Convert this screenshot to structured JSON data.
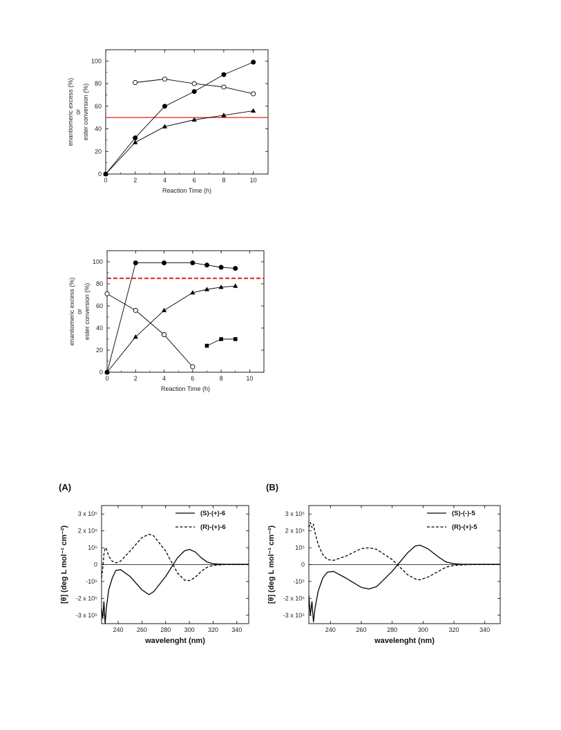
{
  "chart_data": [
    {
      "type": "line",
      "xlabel": "Reaction Time (h)",
      "ylabel_lines": [
        "enantiomeric excess (%)",
        "or",
        "ester conversion (%)"
      ],
      "xlim": [
        0,
        11
      ],
      "ylim": [
        0,
        110
      ],
      "xticks": [
        0,
        2,
        4,
        6,
        8,
        10
      ],
      "yticks": [
        0,
        20,
        40,
        60,
        80,
        100
      ],
      "reference_line": {
        "y": 50,
        "color": "#e8352c",
        "style": "solid"
      },
      "series": [
        {
          "marker": "filled-circle",
          "x": [
            0,
            2,
            4,
            6,
            8,
            10
          ],
          "y": [
            0,
            32,
            60,
            73,
            88,
            99
          ]
        },
        {
          "marker": "open-circle",
          "x": [
            2,
            4,
            6,
            8,
            10
          ],
          "y": [
            81,
            84,
            80,
            77,
            71
          ]
        },
        {
          "marker": "filled-triangle",
          "x": [
            0,
            2,
            4,
            6,
            8,
            10
          ],
          "y": [
            0,
            28,
            42,
            48,
            52,
            56
          ]
        }
      ]
    },
    {
      "type": "line",
      "xlabel": "Reaction Time (h)",
      "ylabel_lines": [
        "enantiomeric excess (%)",
        "or",
        "ester conversion (%)"
      ],
      "xlim": [
        0,
        11
      ],
      "ylim": [
        0,
        110
      ],
      "xticks": [
        0,
        2,
        4,
        6,
        8,
        10
      ],
      "yticks": [
        0,
        20,
        40,
        60,
        80,
        100
      ],
      "reference_line": {
        "y": 85,
        "color": "#e8352c",
        "style": "dashed"
      },
      "series": [
        {
          "marker": "filled-circle",
          "x": [
            0,
            2,
            4,
            6,
            7,
            8,
            9
          ],
          "y": [
            0,
            99,
            99,
            99,
            97,
            95,
            94
          ]
        },
        {
          "marker": "open-circle",
          "x": [
            0,
            2,
            4,
            6
          ],
          "y": [
            71,
            56,
            34,
            5
          ]
        },
        {
          "marker": "filled-triangle",
          "x": [
            0,
            2,
            4,
            6,
            7,
            8,
            9
          ],
          "y": [
            0,
            32,
            56,
            72,
            75,
            77,
            78
          ]
        },
        {
          "marker": "filled-square",
          "x": [
            7,
            8,
            9
          ],
          "y": [
            24,
            30,
            30
          ]
        }
      ]
    },
    {
      "type": "line",
      "panel_label": "(A)",
      "xlabel": "wavelenght (nm)",
      "ylabel": "[θ] (deg L mol⁻¹ cm⁻²)",
      "xlim": [
        226,
        350
      ],
      "ylim": [
        -3.5,
        3.5
      ],
      "xticks": [
        240,
        260,
        280,
        300,
        320,
        340
      ],
      "yticks": [
        3,
        2,
        1,
        0,
        -1,
        -2,
        -3
      ],
      "ytick_labels": [
        "3 x 10⁵",
        "2 x 10⁵",
        "10⁵",
        "0",
        "-10⁵",
        "-2 x 10⁵",
        "-3 x 10⁵"
      ],
      "series": [
        {
          "name": "(S)-(+)-6",
          "style": "solid",
          "x": [
            226,
            227,
            228,
            229,
            230,
            232,
            235,
            238,
            242,
            250,
            260,
            266,
            270,
            280,
            290,
            296,
            300,
            305,
            310,
            315,
            320,
            325,
            330,
            340,
            350
          ],
          "y": [
            -2.6,
            -3.2,
            -2.2,
            -3.5,
            -2.6,
            -1.5,
            -0.8,
            -0.35,
            -0.3,
            -0.7,
            -1.5,
            -1.78,
            -1.6,
            -0.7,
            0.4,
            0.82,
            0.9,
            0.75,
            0.4,
            0.15,
            0.05,
            0.03,
            0.02,
            0.02,
            0.02
          ]
        },
        {
          "name": "(R)-(+)-6",
          "style": "dashed",
          "x": [
            226,
            227,
            228,
            229,
            230,
            232,
            235,
            238,
            242,
            250,
            260,
            266,
            270,
            280,
            290,
            296,
            300,
            305,
            310,
            315,
            320,
            325,
            330,
            340,
            350
          ],
          "y": [
            -0.8,
            -0.2,
            0.6,
            1.0,
            0.95,
            0.5,
            0.2,
            0.1,
            0.2,
            0.8,
            1.6,
            1.8,
            1.7,
            0.8,
            -0.5,
            -0.92,
            -0.95,
            -0.75,
            -0.4,
            -0.15,
            -0.05,
            -0.02,
            0.0,
            0.0,
            0.0
          ]
        }
      ]
    },
    {
      "type": "line",
      "panel_label": "(B)",
      "xlabel": "wavelenght (nm)",
      "ylabel": "[θ] (deg L mol⁻¹ cm⁻²)",
      "xlim": [
        226,
        350
      ],
      "ylim": [
        -3.5,
        3.5
      ],
      "xticks": [
        240,
        260,
        280,
        300,
        320,
        340
      ],
      "yticks": [
        3,
        2,
        1,
        0,
        -1,
        -2,
        -3
      ],
      "ytick_labels": [
        "3 x 10⁵",
        "2 x 10⁵",
        "10⁵",
        "0",
        "-10⁵",
        "-2 x 10⁵",
        "-3 x 10⁵"
      ],
      "series": [
        {
          "name": "(S)-(-)-5",
          "style": "solid",
          "x": [
            226,
            227,
            228,
            229,
            230,
            232,
            235,
            238,
            242,
            250,
            260,
            265,
            270,
            280,
            290,
            295,
            298,
            303,
            310,
            315,
            320,
            325,
            330,
            340,
            350
          ],
          "y": [
            -1.8,
            -3.0,
            -2.2,
            -3.4,
            -2.6,
            -1.6,
            -0.8,
            -0.45,
            -0.4,
            -0.8,
            -1.35,
            -1.45,
            -1.3,
            -0.4,
            0.7,
            1.1,
            1.15,
            0.95,
            0.45,
            0.15,
            0.05,
            0.02,
            0.02,
            0.02,
            0.02
          ]
        },
        {
          "name": "(R)-(+)-5",
          "style": "dashed",
          "x": [
            226,
            227,
            228,
            229,
            230,
            232,
            235,
            238,
            242,
            250,
            260,
            265,
            270,
            280,
            290,
            295,
            298,
            303,
            310,
            315,
            320,
            325,
            330,
            340,
            350
          ],
          "y": [
            2.2,
            2.5,
            2.2,
            2.4,
            1.9,
            1.2,
            0.6,
            0.3,
            0.25,
            0.5,
            0.95,
            1.0,
            0.9,
            0.3,
            -0.6,
            -0.85,
            -0.9,
            -0.75,
            -0.4,
            -0.15,
            -0.05,
            -0.02,
            0.0,
            0.0,
            0.0
          ]
        }
      ]
    }
  ]
}
